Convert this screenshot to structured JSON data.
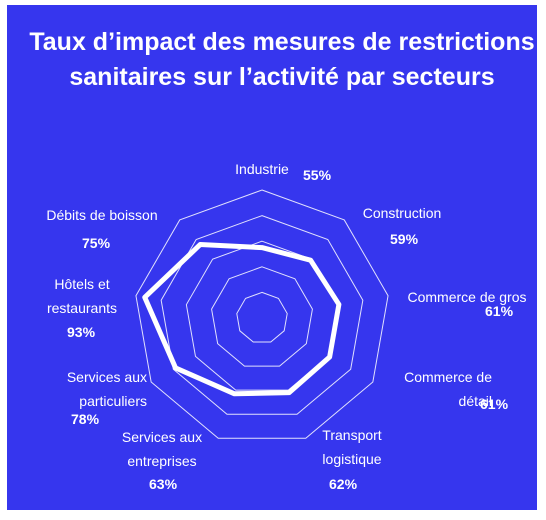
{
  "chart_data": {
    "type": "radar",
    "title": "Taux d’impact des mesures de restrictions sanitaires sur l’activité par secteurs",
    "categories": [
      "Industrie",
      "Construction",
      "Commerce de gros",
      "Commerce de détail",
      "Transport logistique",
      "Services aux entreprises",
      "Services aux particuliers",
      "Hôtels et restaurants",
      "Débits de boisson"
    ],
    "values": [
      55,
      59,
      61,
      61,
      62,
      63,
      78,
      93,
      75
    ],
    "value_labels": [
      "55%",
      "59%",
      "61%",
      "61%",
      "62%",
      "63%",
      "78%",
      "93%",
      "75%"
    ],
    "color": "#ffffff",
    "ylim": [
      0,
      100
    ],
    "yticks": [
      20,
      40,
      60,
      80,
      100
    ],
    "grid": true
  }
}
